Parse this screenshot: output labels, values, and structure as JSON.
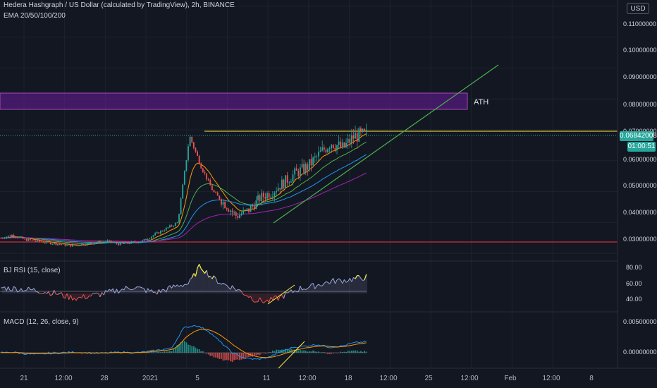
{
  "header": {
    "title": "Hedera Hashgraph / US Dollar (calculated by TradingView), 2h, BINANCE",
    "indicator": "EMA 20/50/100/200"
  },
  "currency_button": "USD",
  "main_y_ticks": [
    "0.11000000",
    "0.10000000",
    "0.09000000",
    "0.08000000",
    "0.07000000",
    "0.06000000",
    "0.05000000",
    "0.04000000",
    "0.03000000"
  ],
  "rsi_y_ticks": [
    "80.00",
    "60.00",
    "40.00"
  ],
  "macd_y_ticks": [
    "0.00500000",
    "0.00000000"
  ],
  "x_ticks": [
    "21",
    "12:00",
    "28",
    "2021",
    "5",
    "11",
    "12:00",
    "18",
    "12:00",
    "25",
    "12:00",
    "Feb",
    "12:00",
    "8"
  ],
  "current_price": "0.06842008",
  "countdown": "01:00:51",
  "ath_label": "ATH",
  "rsi_label": "BJ RSI (15, close)",
  "macd_label": "MACD (12, 26, close, 9)",
  "colors": {
    "background": "#131722",
    "up": "#26a69a",
    "down": "#ef5350",
    "ath_zone": "#9c27b0",
    "resistance": "#ffeb3b",
    "trendline": "#4caf50",
    "support": "#f23645"
  },
  "chart_data": [
    {
      "type": "candlestick",
      "title": "Hedera Hashgraph / US Dollar (calculated by TradingView), 2h, BINANCE",
      "ylim": [
        0.028,
        0.112
      ],
      "annotations": [
        "ATH"
      ],
      "series": [
        {
          "name": "EMA 20/50/100/200"
        }
      ],
      "x": [
        "21",
        "12:00",
        "28",
        "2021",
        "5",
        "11",
        "12:00",
        "18",
        "12:00",
        "25",
        "12:00",
        "Feb",
        "12:00",
        "8"
      ],
      "close_path": [
        0.035,
        0.036,
        0.0345,
        0.034,
        0.0335,
        0.033,
        0.0325,
        0.033,
        0.0335,
        0.034,
        0.033,
        0.0335,
        0.034,
        0.036,
        0.038,
        0.04,
        0.068,
        0.058,
        0.05,
        0.046,
        0.042,
        0.044,
        0.048,
        0.05,
        0.053,
        0.056,
        0.058,
        0.062,
        0.066,
        0.064,
        0.068,
        0.0684
      ],
      "resistance": 0.0695,
      "ath_zone": [
        0.0785,
        0.0845
      ],
      "support": 0.0295,
      "last": 0.06842008
    },
    {
      "type": "line",
      "title": "BJ RSI (15, close)",
      "ylim": [
        30,
        88
      ],
      "path": [
        57,
        56,
        55,
        54,
        52,
        50,
        46,
        44,
        47,
        49,
        52,
        55,
        58,
        54,
        51,
        55,
        60,
        62,
        84,
        70,
        62,
        57,
        50,
        42,
        40,
        44,
        50,
        56,
        58,
        62,
        65,
        66,
        68,
        70
      ]
    },
    {
      "type": "bar",
      "title": "MACD (12, 26, close, 9)",
      "ylim": [
        -0.002,
        0.006
      ],
      "path": [
        0.0,
        0.0001,
        -0.0002,
        -0.0003,
        -0.0001,
        0.0,
        0.0001,
        0.0,
        -0.0001,
        0.0,
        0.0001,
        0.0,
        0.0002,
        0.0005,
        0.0008,
        0.0045,
        0.005,
        0.004,
        0.002,
        0.0,
        -0.001,
        -0.0012,
        -0.0008,
        0.0002,
        0.001,
        0.0012,
        0.0015,
        0.001,
        0.0012,
        0.0018,
        0.002
      ]
    }
  ]
}
